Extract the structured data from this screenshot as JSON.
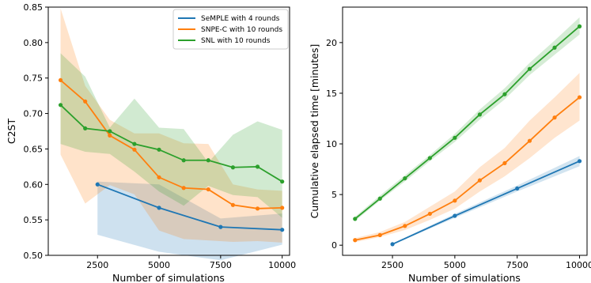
{
  "colors": {
    "blue": "#1f77b4",
    "orange": "#ff7f0e",
    "green": "#2ca02c"
  },
  "chart_data": [
    {
      "type": "line",
      "xlabel": "Number of simulations",
      "ylabel": "C2ST",
      "xlim": [
        500,
        10300
      ],
      "ylim": [
        0.5,
        0.85
      ],
      "xticks": [
        2500,
        5000,
        7500,
        10000
      ],
      "yticks": [
        0.5,
        0.55,
        0.6,
        0.65,
        0.7,
        0.75,
        0.8,
        0.85
      ],
      "legend": "top-right",
      "series": [
        {
          "name": "SeMPLE with 4 rounds",
          "color": "#1f77b4",
          "x": [
            2500,
            5000,
            7500,
            10000
          ],
          "y": [
            0.6,
            0.567,
            0.54,
            0.536
          ],
          "lower": [
            0.529,
            0.505,
            0.493,
            0.515
          ],
          "upper": [
            0.604,
            0.6,
            0.552,
            0.559
          ]
        },
        {
          "name": "SNPE-C with 10 rounds",
          "color": "#ff7f0e",
          "x": [
            1000,
            2000,
            3000,
            4000,
            5000,
            6000,
            7000,
            8000,
            9000,
            10000
          ],
          "y": [
            0.747,
            0.717,
            0.669,
            0.649,
            0.61,
            0.595,
            0.593,
            0.571,
            0.566,
            0.567
          ],
          "lower": [
            0.642,
            0.573,
            0.599,
            0.586,
            0.535,
            0.523,
            0.521,
            0.519,
            0.52,
            0.518
          ],
          "upper": [
            0.848,
            0.739,
            0.691,
            0.672,
            0.672,
            0.658,
            0.657,
            0.6,
            0.593,
            0.591
          ]
        },
        {
          "name": "SNL with 10 rounds",
          "color": "#2ca02c",
          "x": [
            1000,
            2000,
            3000,
            4000,
            5000,
            6000,
            7000,
            8000,
            9000,
            10000
          ],
          "y": [
            0.712,
            0.679,
            0.675,
            0.657,
            0.649,
            0.634,
            0.634,
            0.624,
            0.625,
            0.604
          ],
          "lower": [
            0.657,
            0.646,
            0.643,
            0.618,
            0.59,
            0.57,
            0.598,
            0.585,
            0.582,
            0.553
          ],
          "upper": [
            0.785,
            0.752,
            0.68,
            0.721,
            0.68,
            0.678,
            0.631,
            0.67,
            0.689,
            0.677
          ]
        }
      ]
    },
    {
      "type": "line",
      "xlabel": "Number of simulations",
      "ylabel": "Cumulative elapsed time [minutes]",
      "xlim": [
        500,
        10300
      ],
      "ylim": [
        -1,
        23.5
      ],
      "xticks": [
        2500,
        5000,
        7500,
        10000
      ],
      "yticks": [
        0,
        5,
        10,
        15,
        20
      ],
      "series": [
        {
          "color": "#1f77b4",
          "x": [
            2500,
            5000,
            7500,
            10000
          ],
          "y": [
            0.1,
            2.9,
            5.6,
            8.3
          ],
          "lower": [
            0.05,
            2.7,
            5.3,
            7.8
          ],
          "upper": [
            0.15,
            3.1,
            5.9,
            8.8
          ]
        },
        {
          "color": "#ff7f0e",
          "x": [
            1000,
            2000,
            3000,
            4000,
            5000,
            6000,
            7000,
            8000,
            9000,
            10000
          ],
          "y": [
            0.5,
            1.0,
            1.9,
            3.1,
            4.4,
            6.4,
            8.1,
            10.3,
            12.6,
            14.6
          ],
          "lower": [
            0.3,
            0.8,
            1.5,
            2.5,
            3.6,
            5.3,
            6.8,
            8.6,
            10.6,
            12.3
          ],
          "upper": [
            0.7,
            1.3,
            2.3,
            3.8,
            5.3,
            7.7,
            9.6,
            12.3,
            14.6,
            17.0
          ]
        },
        {
          "color": "#2ca02c",
          "x": [
            1000,
            2000,
            3000,
            4000,
            5000,
            6000,
            7000,
            8000,
            9000,
            10000
          ],
          "y": [
            2.6,
            4.6,
            6.6,
            8.6,
            10.6,
            12.9,
            14.9,
            17.4,
            19.5,
            21.6
          ],
          "lower": [
            2.4,
            4.4,
            6.3,
            8.3,
            10.2,
            12.4,
            14.4,
            16.8,
            18.8,
            20.8
          ],
          "upper": [
            2.8,
            4.9,
            6.9,
            8.9,
            11.0,
            13.4,
            15.5,
            18.0,
            20.2,
            22.5
          ]
        }
      ]
    }
  ]
}
